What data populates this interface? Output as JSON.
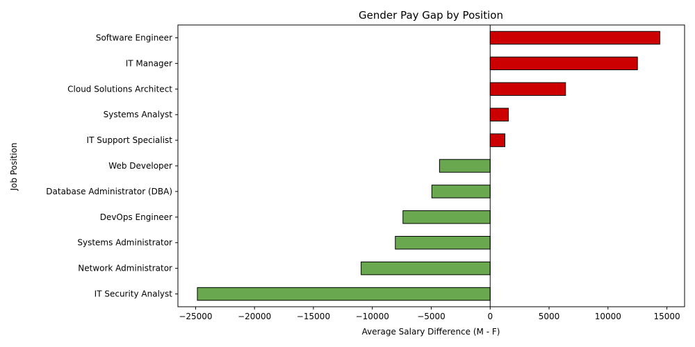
{
  "chart_data": {
    "type": "bar",
    "orientation": "horizontal",
    "title": "Gender Pay Gap by Position",
    "xlabel": "Average Salary Difference (M - F)",
    "ylabel": "Job Position",
    "categories": [
      "Software Engineer",
      "IT Manager",
      "Cloud Solutions Architect",
      "Systems Analyst",
      "IT Support Specialist",
      "Web Developer",
      "Database Administrator (DBA)",
      "DevOps Engineer",
      "Systems Administrator",
      "Network Administrator",
      "IT Security Analyst"
    ],
    "values": [
      14400,
      12500,
      6400,
      1550,
      1250,
      -4300,
      -4950,
      -7400,
      -8050,
      -10950,
      -24850
    ],
    "xlim": [
      -26500,
      16500
    ],
    "xticks": [
      -25000,
      -20000,
      -15000,
      -10000,
      -5000,
      0,
      5000,
      10000,
      15000
    ],
    "xtick_labels": [
      "−25000",
      "−20000",
      "−15000",
      "−10000",
      "−5000",
      "0",
      "5000",
      "10000",
      "15000"
    ],
    "grid": false,
    "colors": {
      "positive": "#cc0000",
      "negative": "#6aa84f",
      "edge": "#000000"
    }
  }
}
